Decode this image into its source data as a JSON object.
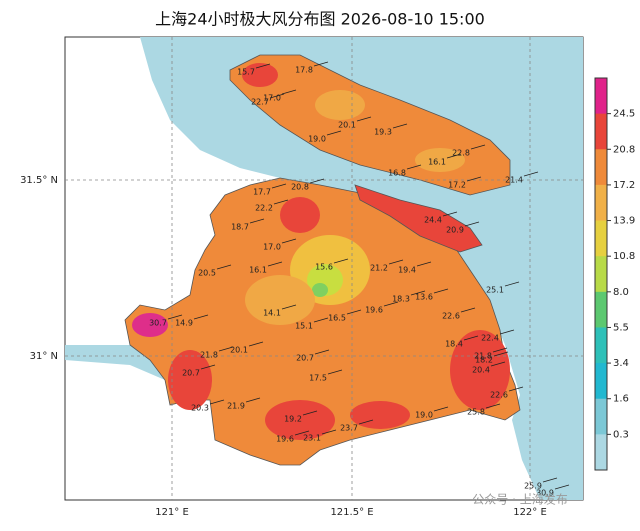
{
  "title": "上海24小时极大风分布图 2026-08-10 15:00",
  "axes": {
    "lat": [
      "31.5° N",
      "31° N"
    ],
    "lon": [
      "121° E",
      "121.5° E",
      "122° E"
    ]
  },
  "colorbar": {
    "labels": [
      "24.5",
      "20.8",
      "17.2",
      "13.9",
      "10.8",
      "8.0",
      "5.5",
      "3.4",
      "1.6",
      "0.3"
    ]
  },
  "stations": [
    "15.7",
    "17.8",
    "22.7",
    "17.0",
    "20.1",
    "19.3",
    "19.0",
    "16.1",
    "22.8",
    "17.2",
    "21.4",
    "16.8",
    "20.8",
    "24.4",
    "20.9",
    "17.7",
    "22.2",
    "18.7",
    "17.0",
    "20.5",
    "16.1",
    "15.6",
    "21.2",
    "19.4",
    "25.1",
    "18.3",
    "13.6",
    "22.6",
    "14.9",
    "16.5",
    "14.1",
    "15.1",
    "19.6",
    "21.8",
    "22.4",
    "21.8",
    "20.1",
    "18.4",
    "18.2",
    "20.4",
    "22.6",
    "20.7",
    "20.3",
    "21.9",
    "17.5",
    "19.2",
    "23.1",
    "19.6",
    "19.0",
    "25.8",
    "23.7",
    "20.7",
    "25.9",
    "30.9",
    "30.7"
  ],
  "watermark": "公众号 · 上海发布"
}
